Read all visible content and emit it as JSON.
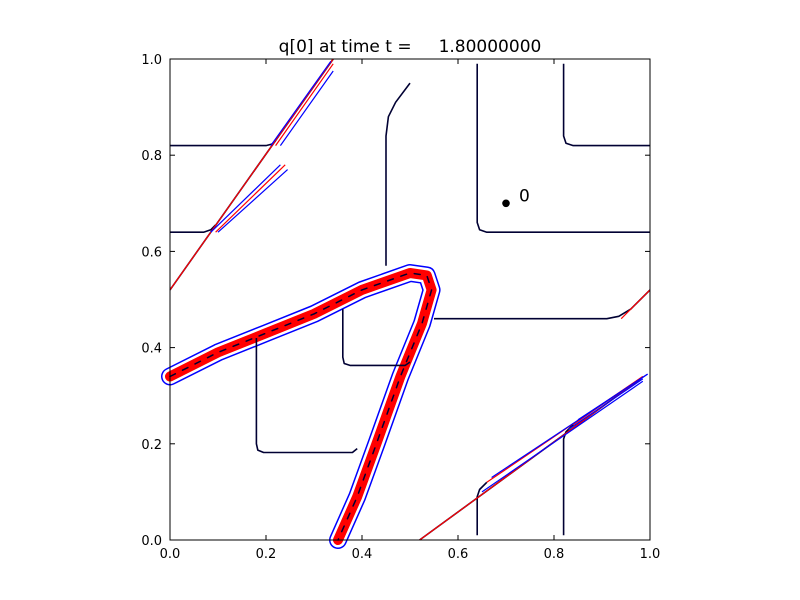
{
  "chart_data": {
    "type": "line",
    "title": "q[0] at time t =     1.80000000",
    "xlabel": "",
    "ylabel": "",
    "xlim": [
      0.0,
      1.0
    ],
    "ylim": [
      0.0,
      1.0
    ],
    "grid": false,
    "x_ticks": [
      "0.0",
      "0.2",
      "0.4",
      "0.6",
      "0.8",
      "1.0"
    ],
    "y_ticks": [
      "0.0",
      "0.2",
      "0.4",
      "0.6",
      "0.8",
      "1.0"
    ],
    "colors": {
      "blue": "#0000ff",
      "red": "#ff0000",
      "dark": "#000033",
      "point": "#000000"
    },
    "annotations": [
      {
        "text": "0",
        "x": 0.7,
        "y": 0.7
      }
    ],
    "contours": [
      {
        "color": "dark",
        "points": [
          [
            0.0,
            0.82
          ],
          [
            0.2,
            0.82
          ],
          [
            0.212,
            0.823
          ],
          [
            0.22,
            0.83
          ]
        ]
      },
      {
        "color": "dark",
        "points": [
          [
            0.0,
            0.64
          ],
          [
            0.07,
            0.64
          ],
          [
            0.085,
            0.645
          ],
          [
            0.095,
            0.655
          ]
        ]
      },
      {
        "color": "dark",
        "points": [
          [
            0.45,
            0.57
          ],
          [
            0.45,
            0.84
          ],
          [
            0.455,
            0.88
          ],
          [
            0.47,
            0.91
          ],
          [
            0.5,
            0.95
          ]
        ]
      },
      {
        "color": "dark",
        "points": [
          [
            0.64,
            0.99
          ],
          [
            0.64,
            0.66
          ],
          [
            0.645,
            0.645
          ],
          [
            0.66,
            0.64
          ],
          [
            1.0,
            0.64
          ]
        ]
      },
      {
        "color": "dark",
        "points": [
          [
            0.82,
            0.99
          ],
          [
            0.82,
            0.84
          ],
          [
            0.825,
            0.825
          ],
          [
            0.84,
            0.82
          ],
          [
            1.0,
            0.82
          ]
        ]
      },
      {
        "color": "dark",
        "points": [
          [
            0.36,
            0.48
          ],
          [
            0.36,
            0.38
          ],
          [
            0.363,
            0.367
          ],
          [
            0.375,
            0.363
          ],
          [
            0.49,
            0.363
          ],
          [
            0.5,
            0.37
          ]
        ]
      },
      {
        "color": "dark",
        "points": [
          [
            0.18,
            0.42
          ],
          [
            0.18,
            0.2
          ],
          [
            0.183,
            0.187
          ],
          [
            0.195,
            0.182
          ],
          [
            0.38,
            0.182
          ],
          [
            0.39,
            0.19
          ]
        ]
      },
      {
        "color": "dark",
        "points": [
          [
            0.55,
            0.46
          ],
          [
            0.91,
            0.46
          ],
          [
            0.935,
            0.465
          ],
          [
            0.96,
            0.48
          ],
          [
            1.0,
            0.52
          ]
        ]
      },
      {
        "color": "dark",
        "points": [
          [
            0.64,
            0.01
          ],
          [
            0.64,
            0.09
          ],
          [
            0.645,
            0.105
          ],
          [
            0.66,
            0.12
          ]
        ]
      },
      {
        "color": "dark",
        "points": [
          [
            0.82,
            0.01
          ],
          [
            0.82,
            0.21
          ],
          [
            0.825,
            0.225
          ],
          [
            0.84,
            0.24
          ]
        ]
      },
      {
        "color": "dark",
        "points": [
          [
            0.52,
            0.0
          ],
          [
            0.98,
            0.335
          ]
        ]
      },
      {
        "color": "dark",
        "points": [
          [
            0.0,
            0.52
          ],
          [
            0.34,
            1.0
          ]
        ]
      },
      {
        "color": "red",
        "points": [
          [
            0.0,
            0.52
          ],
          [
            0.34,
            1.0
          ]
        ]
      },
      {
        "color": "red",
        "points": [
          [
            0.52,
            0.0
          ],
          [
            0.98,
            0.335
          ]
        ]
      },
      {
        "color": "red",
        "points": [
          [
            0.22,
            0.82
          ],
          [
            0.34,
            0.99
          ]
        ]
      },
      {
        "color": "red",
        "points": [
          [
            0.095,
            0.64
          ],
          [
            0.24,
            0.78
          ]
        ]
      },
      {
        "color": "red",
        "points": [
          [
            0.94,
            0.46
          ],
          [
            1.0,
            0.52
          ]
        ]
      },
      {
        "color": "red",
        "points": [
          [
            0.66,
            0.12
          ],
          [
            0.985,
            0.34
          ]
        ]
      },
      {
        "color": "red",
        "points": [
          [
            0.84,
            0.24
          ],
          [
            0.985,
            0.34
          ]
        ]
      },
      {
        "color": "blue",
        "points": [
          [
            0.21,
            0.82
          ],
          [
            0.335,
            0.995
          ]
        ]
      },
      {
        "color": "blue",
        "points": [
          [
            0.23,
            0.82
          ],
          [
            0.34,
            0.975
          ]
        ]
      },
      {
        "color": "blue",
        "points": [
          [
            0.085,
            0.64
          ],
          [
            0.23,
            0.78
          ]
        ]
      },
      {
        "color": "blue",
        "points": [
          [
            0.1,
            0.64
          ],
          [
            0.245,
            0.77
          ]
        ]
      },
      {
        "color": "blue",
        "points": [
          [
            0.65,
            0.1
          ],
          [
            0.985,
            0.33
          ]
        ]
      },
      {
        "color": "blue",
        "points": [
          [
            0.67,
            0.13
          ],
          [
            0.995,
            0.345
          ]
        ]
      },
      {
        "color": "blue",
        "points": [
          [
            0.83,
            0.23
          ],
          [
            0.985,
            0.335
          ]
        ]
      },
      {
        "color": "blue",
        "points": [
          [
            0.85,
            0.25
          ],
          [
            0.995,
            0.345
          ]
        ]
      }
    ],
    "thick_bands": [
      {
        "points": [
          [
            0.0,
            0.34
          ],
          [
            0.1,
            0.39
          ],
          [
            0.2,
            0.43
          ],
          [
            0.3,
            0.47
          ],
          [
            0.4,
            0.52
          ],
          [
            0.5,
            0.555
          ],
          [
            0.535,
            0.55
          ],
          [
            0.545,
            0.52
          ],
          [
            0.525,
            0.45
          ],
          [
            0.48,
            0.34
          ],
          [
            0.43,
            0.2
          ],
          [
            0.39,
            0.09
          ],
          [
            0.35,
            0.0
          ]
        ]
      }
    ]
  }
}
